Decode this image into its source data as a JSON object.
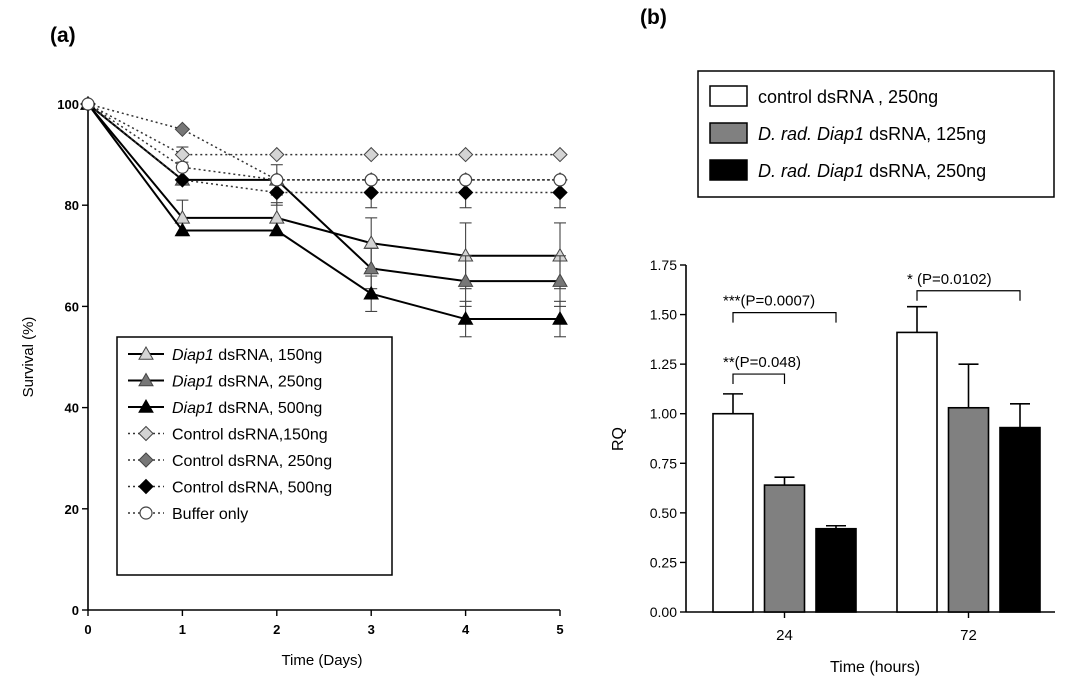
{
  "chart_data": [
    {
      "panel_label": "(a)",
      "type": "line",
      "xlabel": "Time (Days)",
      "ylabel": "Survival (%)",
      "xlim": [
        0,
        5
      ],
      "ylim": [
        0,
        100
      ],
      "xticks": [
        "0",
        "1",
        "2",
        "3",
        "4",
        "5"
      ],
      "yticks": [
        "0",
        "20",
        "40",
        "60",
        "80",
        "100"
      ],
      "grid": false,
      "legend_position": "bottom-center",
      "x": [
        0,
        1,
        2,
        3,
        4,
        5
      ],
      "series": [
        {
          "name_italic": "Diap1",
          "name_rest": " dsRNA, 150ng",
          "marker": "triangle",
          "fill": "#d4d4d4",
          "line": "solid",
          "values": [
            100,
            77.5,
            77.5,
            72.5,
            70,
            70
          ],
          "errors": [
            0,
            3.5,
            3,
            5,
            6.5,
            6.5
          ]
        },
        {
          "name_italic": "Diap1",
          "name_rest": " dsRNA, 250ng",
          "marker": "triangle",
          "fill": "#777777",
          "line": "solid",
          "values": [
            100,
            85,
            85,
            67.5,
            65,
            65
          ],
          "errors": [
            0,
            0,
            3,
            4,
            5,
            5
          ]
        },
        {
          "name_italic": "Diap1",
          "name_rest": " dsRNA, 500ng",
          "marker": "triangle",
          "fill": "#000000",
          "line": "solid",
          "values": [
            100,
            75,
            75,
            62.5,
            57.5,
            57.5
          ],
          "errors": [
            0,
            0,
            0,
            3.5,
            3.5,
            3.5
          ]
        },
        {
          "name_italic": "",
          "name_rest": "Control dsRNA,150ng",
          "marker": "diamond",
          "fill": "#d4d4d4",
          "line": "dotted",
          "values": [
            100,
            90,
            90,
            90,
            90,
            90
          ],
          "errors": [
            0,
            1.5,
            0,
            0,
            0,
            0
          ]
        },
        {
          "name_italic": "",
          "name_rest": "Control dsRNA, 250ng",
          "marker": "diamond",
          "fill": "#777777",
          "line": "dotted",
          "values": [
            100,
            95,
            85,
            85,
            85,
            85
          ],
          "errors": [
            0,
            0,
            0,
            0,
            0,
            0
          ]
        },
        {
          "name_italic": "",
          "name_rest": "Control dsRNA, 500ng",
          "marker": "diamond",
          "fill": "#000000",
          "line": "dotted",
          "values": [
            100,
            85,
            82.5,
            82.5,
            82.5,
            82.5
          ],
          "errors": [
            0,
            0,
            2.5,
            3,
            3,
            3
          ]
        },
        {
          "name_italic": "",
          "name_rest": "Buffer only",
          "marker": "circle",
          "fill": "#ffffff",
          "line": "dotted",
          "values": [
            100,
            87.5,
            85,
            85,
            85,
            85
          ],
          "errors": [
            0,
            0,
            0,
            0,
            0,
            0
          ]
        }
      ]
    },
    {
      "panel_label": "(b)",
      "type": "bar",
      "xlabel": "Time (hours)",
      "ylabel": "RQ",
      "categories": [
        "24",
        "72"
      ],
      "ylim": [
        0,
        1.75
      ],
      "yticks": [
        "0.00",
        "0.25",
        "0.50",
        "0.75",
        "1.00",
        "1.25",
        "1.50",
        "1.75"
      ],
      "grid": false,
      "legend_position": "top",
      "series": [
        {
          "legend_parts": [
            {
              "text": "control  dsRNA , 250ng",
              "italic": false
            }
          ],
          "color": "#ffffff",
          "values": [
            1.0,
            1.41
          ],
          "errors": [
            0.1,
            0.13
          ]
        },
        {
          "legend_parts": [
            {
              "text": "D. rad. Diap1",
              "italic": true
            },
            {
              "text": " dsRNA, 125ng",
              "italic": false
            }
          ],
          "color": "#808080",
          "values": [
            0.64,
            1.03
          ],
          "errors": [
            0.04,
            0.22
          ]
        },
        {
          "legend_parts": [
            {
              "text": "D. rad. Diap1",
              "italic": true
            },
            {
              "text": " dsRNA, 250ng",
              "italic": false
            }
          ],
          "color": "#000000",
          "values": [
            0.42,
            0.93
          ],
          "errors": [
            0.015,
            0.12
          ]
        }
      ],
      "annotations": [
        {
          "text": "***(P=0.0007)",
          "category": 0,
          "from_series": 0,
          "to_series": 2,
          "level": 1.51
        },
        {
          "text": "**(P=0.048)",
          "category": 0,
          "from_series": 0,
          "to_series": 1,
          "level": 1.2
        },
        {
          "text": "* (P=0.0102)",
          "category": 1,
          "from_series": 0,
          "to_series": 2,
          "level": 1.62
        }
      ]
    }
  ]
}
